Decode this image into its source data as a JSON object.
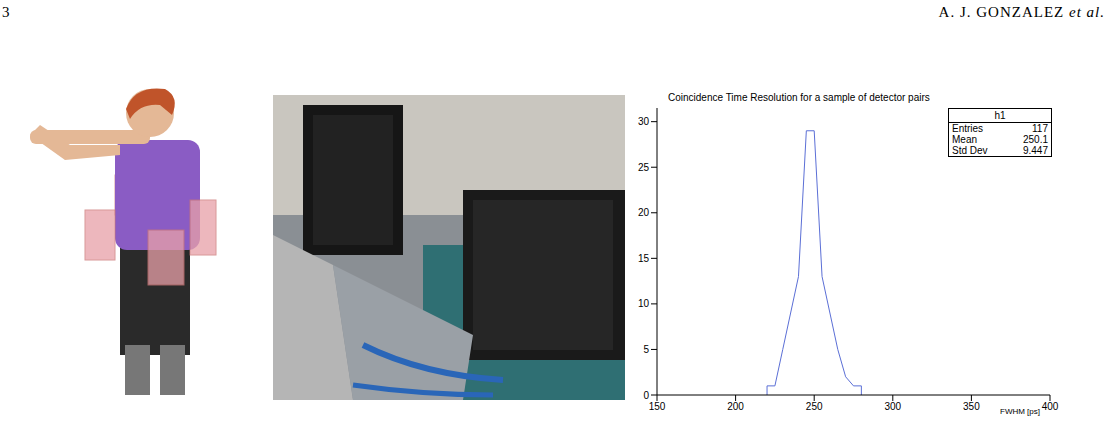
{
  "header": {
    "page": "3",
    "running_head": "A. J. GONZALEZ",
    "running_head_suffix": "et al."
  },
  "chart_data": {
    "type": "histogram",
    "title": "Coincidence Time Resolution for a sample of detector pairs",
    "xlabel": "FWHM [ps]",
    "bins": [
      220,
      225,
      230,
      235,
      240,
      245,
      250,
      255,
      260,
      265,
      270,
      275,
      280
    ],
    "counts": [
      1,
      1,
      5,
      9,
      13,
      29,
      29,
      13,
      9,
      5,
      2,
      1
    ],
    "color": "#5b6fd6",
    "xlim": [
      150,
      400
    ],
    "xticks": [
      150,
      200,
      250,
      300,
      350,
      400
    ],
    "ylim": [
      0,
      31.5
    ],
    "yticks": [
      0,
      5,
      10,
      15,
      20,
      25,
      30
    ],
    "stats": {
      "name": "h1",
      "entries": [
        [
          "Entries",
          117
        ],
        [
          "Mean",
          250.1
        ],
        [
          "Std Dev",
          9.447
        ]
      ]
    }
  }
}
